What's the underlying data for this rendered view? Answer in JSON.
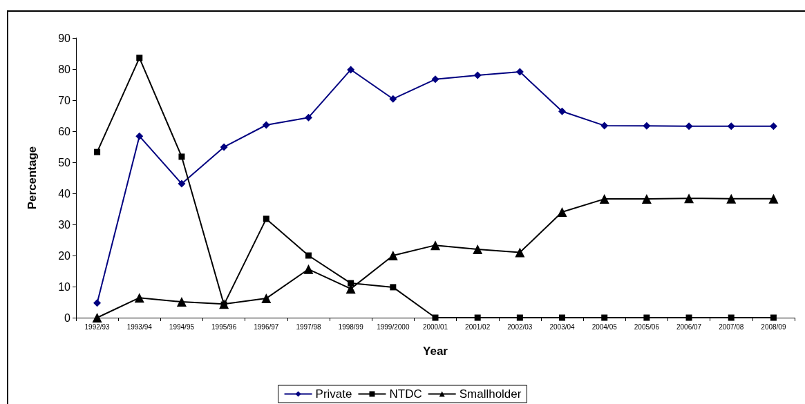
{
  "chart_data": {
    "type": "line",
    "xlabel": "Year",
    "ylabel": "Percentage",
    "categories": [
      "1992/93",
      "1993/94",
      "1994/95",
      "1995/96",
      "1996/97",
      "1997/98",
      "1998/99",
      "1999/2000",
      "2000/01",
      "2001/02",
      "2002/03",
      "2003/04",
      "2004/05",
      "2005/06",
      "2006/07",
      "2007/08",
      "2008/09"
    ],
    "series": [
      {
        "name": "Private",
        "color": "#000080",
        "marker": "diamond",
        "values": [
          4.7,
          58.4,
          43.1,
          54.9,
          62,
          64.4,
          79.8,
          70.4,
          76.7,
          78,
          79.1,
          66.4,
          61.8,
          61.7,
          61.6,
          61.6,
          61.6
        ]
      },
      {
        "name": "NTDC",
        "color": "#000000",
        "marker": "square",
        "values": [
          53.3,
          83.6,
          51.8,
          4.2,
          31.8,
          20,
          11.1,
          9.8,
          0,
          0,
          0,
          0,
          0,
          0,
          0,
          0,
          0
        ]
      },
      {
        "name": "Smallholder",
        "color": "#000000",
        "marker": "triangle",
        "values": [
          0,
          6.4,
          5.1,
          4.4,
          6.2,
          15.6,
          9.3,
          20,
          23.3,
          22,
          21,
          34,
          38.2,
          38.2,
          38.4,
          38.3,
          38.3
        ]
      }
    ],
    "ylim": [
      0,
      90
    ],
    "yticks": [
      0,
      10,
      20,
      30,
      40,
      50,
      60,
      70,
      80,
      90
    ],
    "grid": false,
    "legend": "bottom",
    "line_style": "solid"
  }
}
